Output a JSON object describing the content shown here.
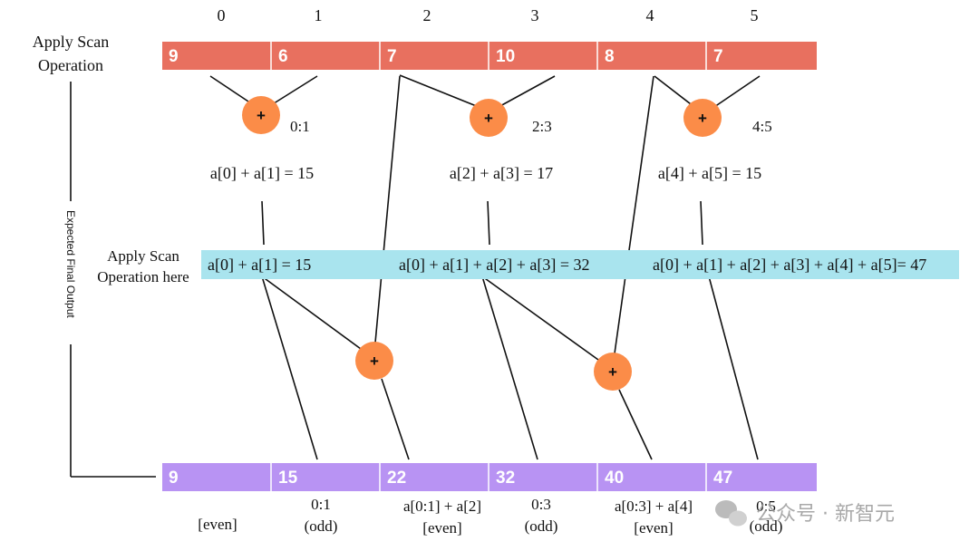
{
  "indices": [
    "0",
    "1",
    "2",
    "3",
    "4",
    "5"
  ],
  "top_row": {
    "label_line1": "Apply Scan",
    "label_line2": "Operation",
    "values": [
      "9",
      "6",
      "7",
      "10",
      "8",
      "7"
    ],
    "color": "#e8705f"
  },
  "pair_ops": [
    {
      "range": "0:1",
      "result": "a[0] + a[1] = 15"
    },
    {
      "range": "2:3",
      "result": "a[2] + a[3] = 17"
    },
    {
      "range": "4:5",
      "result": "a[4] + a[5] = 15"
    }
  ],
  "side_label": "Expected Final Output",
  "middle_row": {
    "label_line1": "Apply Scan",
    "label_line2": "Operation here",
    "values": [
      "a[0] + a[1] = 15",
      "a[0] + a[1] + a[2] + a[3] = 32",
      "a[0] + a[1] + a[2] + a[3] + a[4] + a[5]= 47"
    ],
    "color": "#a9e4ee"
  },
  "bottom_row": {
    "values": [
      "9",
      "15",
      "22",
      "32",
      "40",
      "47"
    ],
    "color": "#b893f3",
    "notes": [
      {
        "line1": "",
        "line2": "[even]"
      },
      {
        "line1": "0:1",
        "line2": "(odd)"
      },
      {
        "line1": "a[0:1] + a[2]",
        "line2": "[even]"
      },
      {
        "line1": "0:3",
        "line2": "(odd)"
      },
      {
        "line1": "a[0:3] + a[4]",
        "line2": "[even]"
      },
      {
        "line1": "0:5",
        "line2": "(odd)"
      }
    ]
  },
  "operator_symbol": "+",
  "operator_color": "#fb8c48",
  "watermark": "公众号 · 新智元"
}
